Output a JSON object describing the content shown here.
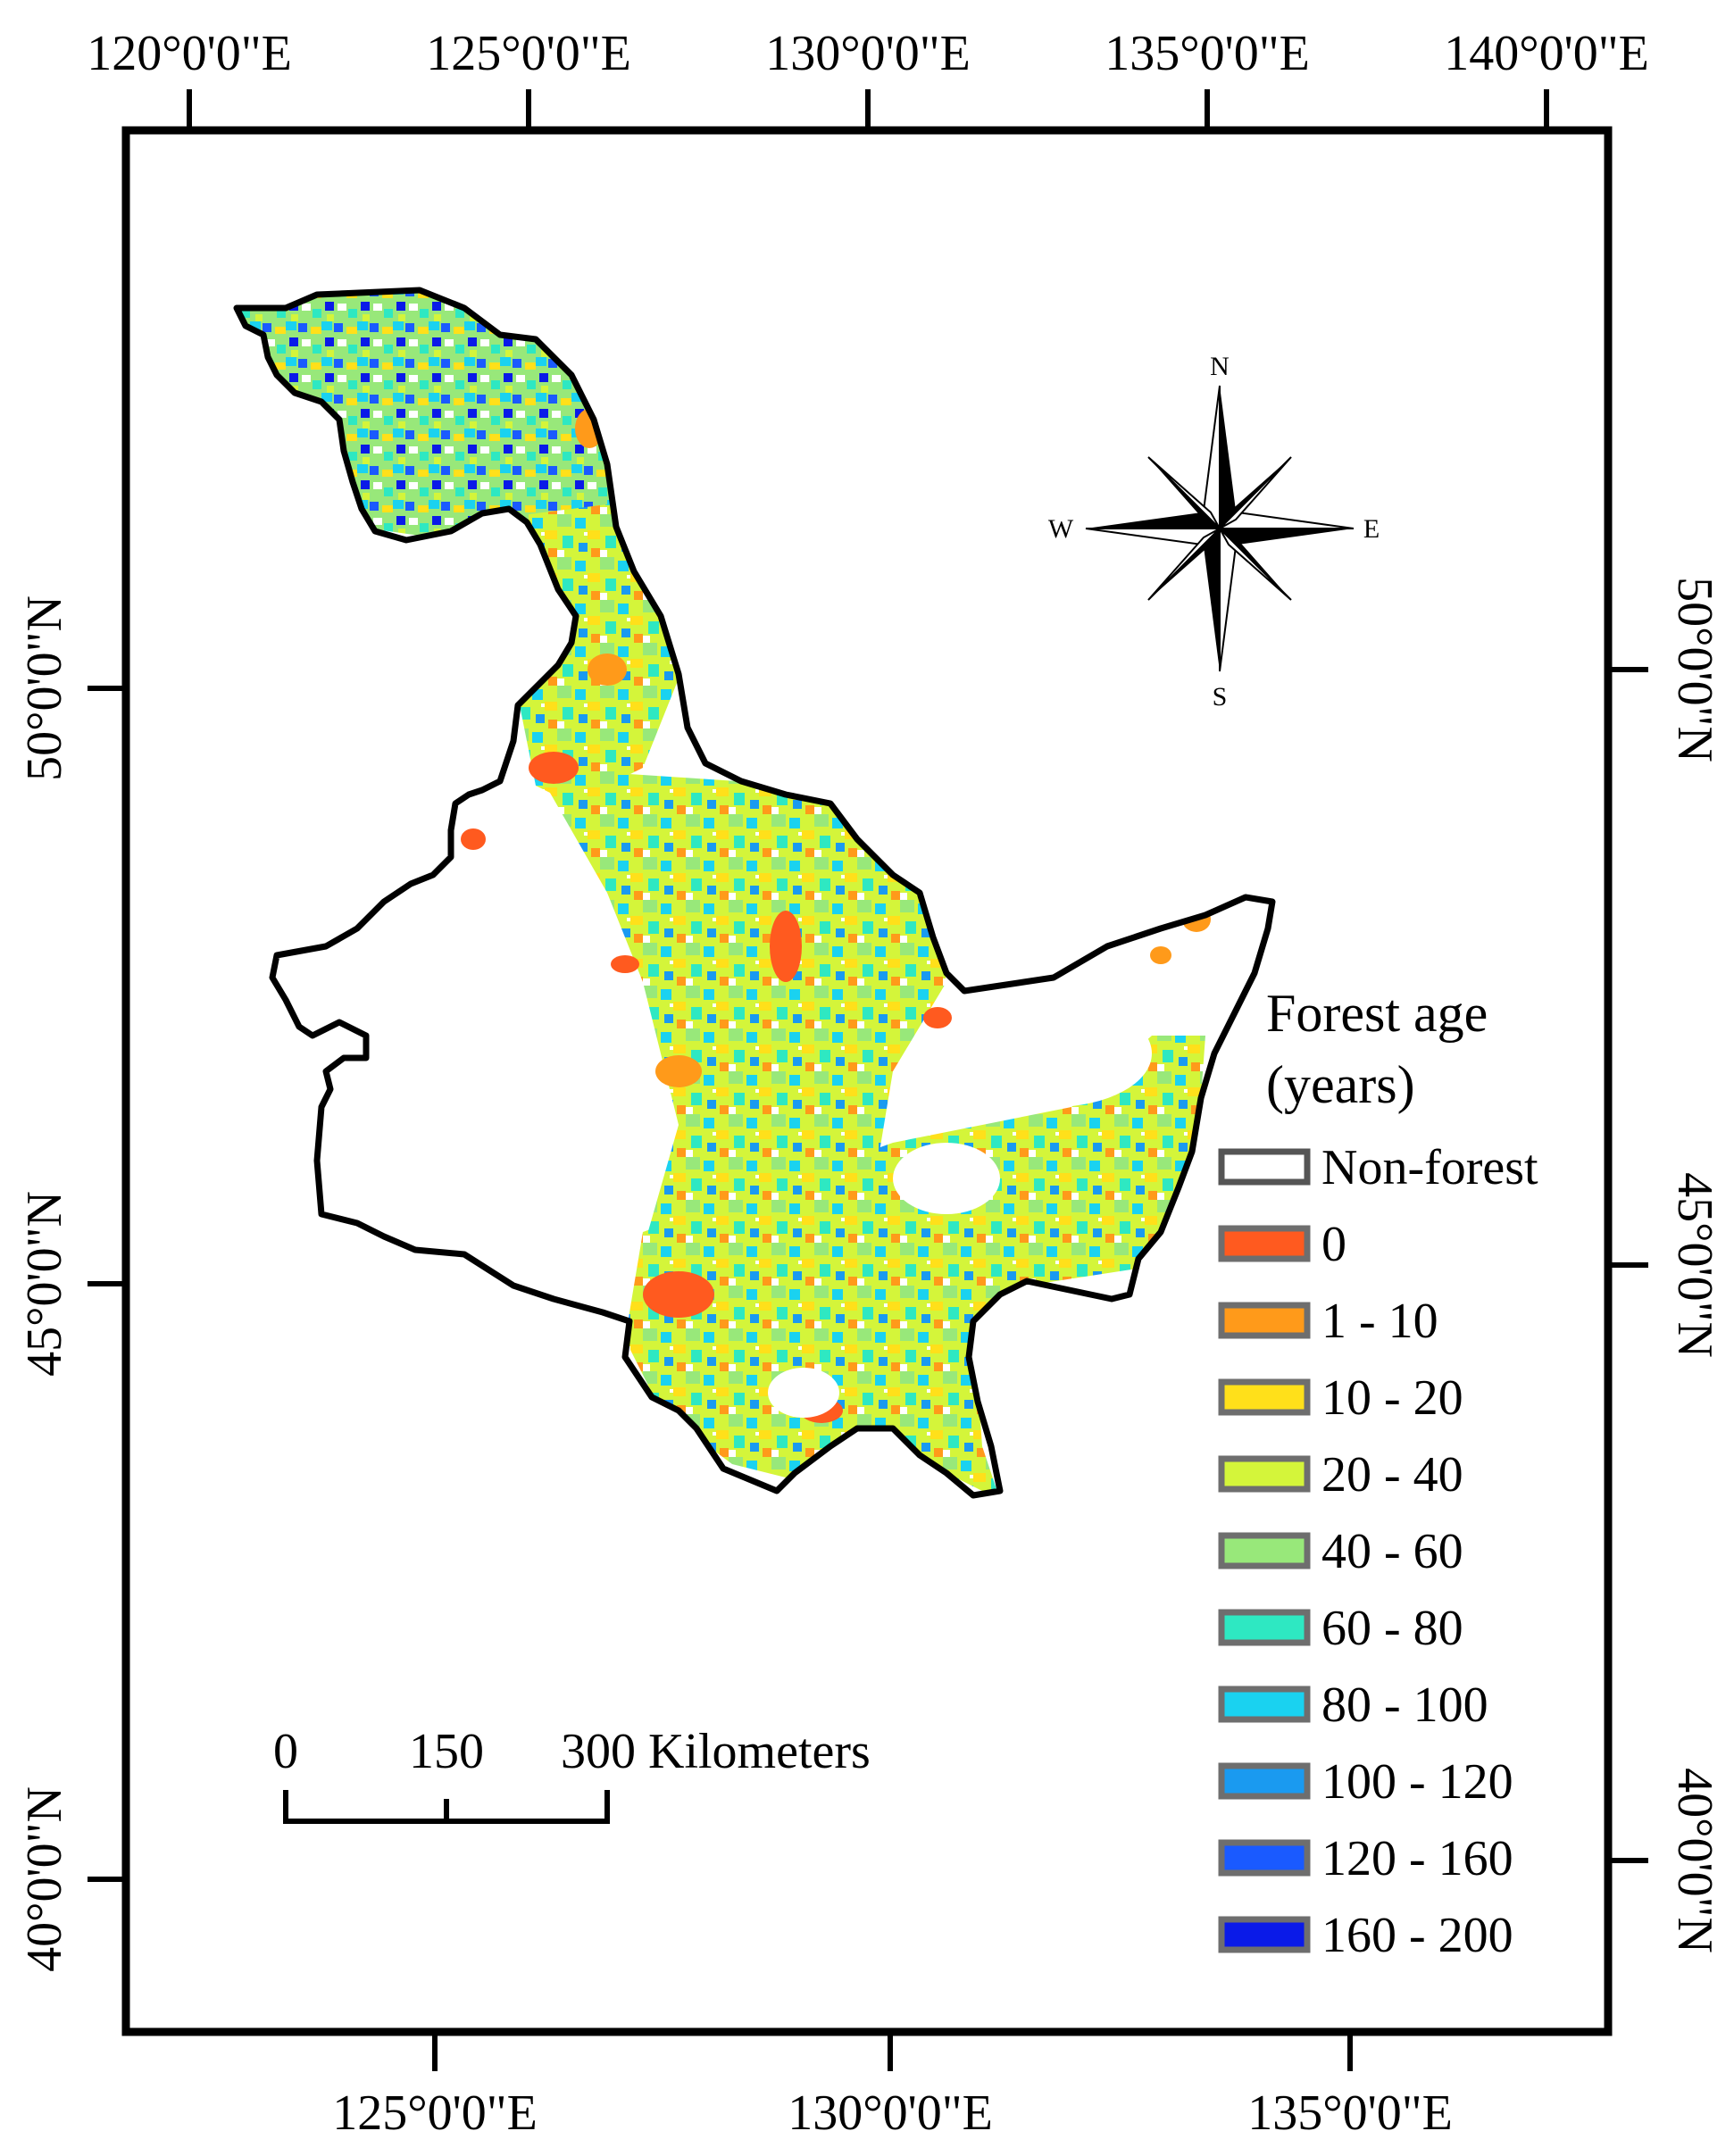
{
  "top_axis": {
    "labels": [
      "120°0'0\"E",
      "125°0'0\"E",
      "130°0'0\"E",
      "135°0'0\"E",
      "140°0'0\"E"
    ]
  },
  "bottom_axis": {
    "labels": [
      "125°0'0\"E",
      "130°0'0\"E",
      "135°0'0\"E"
    ]
  },
  "left_axis": {
    "labels": [
      "50°0'0\"N",
      "45°0'0\"N",
      "40°0'0\"N"
    ]
  },
  "right_axis": {
    "labels": [
      "50°0'0\"N",
      "45°0'0\"N",
      "40°0'0\"N"
    ]
  },
  "compass": {
    "n": "N",
    "s": "S",
    "e": "E",
    "w": "W"
  },
  "scale_bar": {
    "labels": [
      "0",
      "150",
      "300 Kilometers"
    ]
  },
  "legend": {
    "title_line1": "Forest age",
    "title_line2": "(years)",
    "items": [
      {
        "label": "Non-forest",
        "color": "#ffffff"
      },
      {
        "label": "0",
        "color": "#ff5a1f"
      },
      {
        "label": "1 - 10",
        "color": "#ff9a1a"
      },
      {
        "label": "10 - 20",
        "color": "#ffe01a"
      },
      {
        "label": "20 - 40",
        "color": "#d4f53a"
      },
      {
        "label": "40 - 60",
        "color": "#98e87a"
      },
      {
        "label": "60 - 80",
        "color": "#2ee8c2"
      },
      {
        "label": "80 - 100",
        "color": "#1ad2f0"
      },
      {
        "label": "100 - 120",
        "color": "#1a9af0"
      },
      {
        "label": "120 - 160",
        "color": "#1a5aff"
      },
      {
        "label": "160 - 200",
        "color": "#0a1ae8"
      }
    ]
  },
  "colors": {
    "frame": "#000000",
    "background": "#ffffff"
  }
}
